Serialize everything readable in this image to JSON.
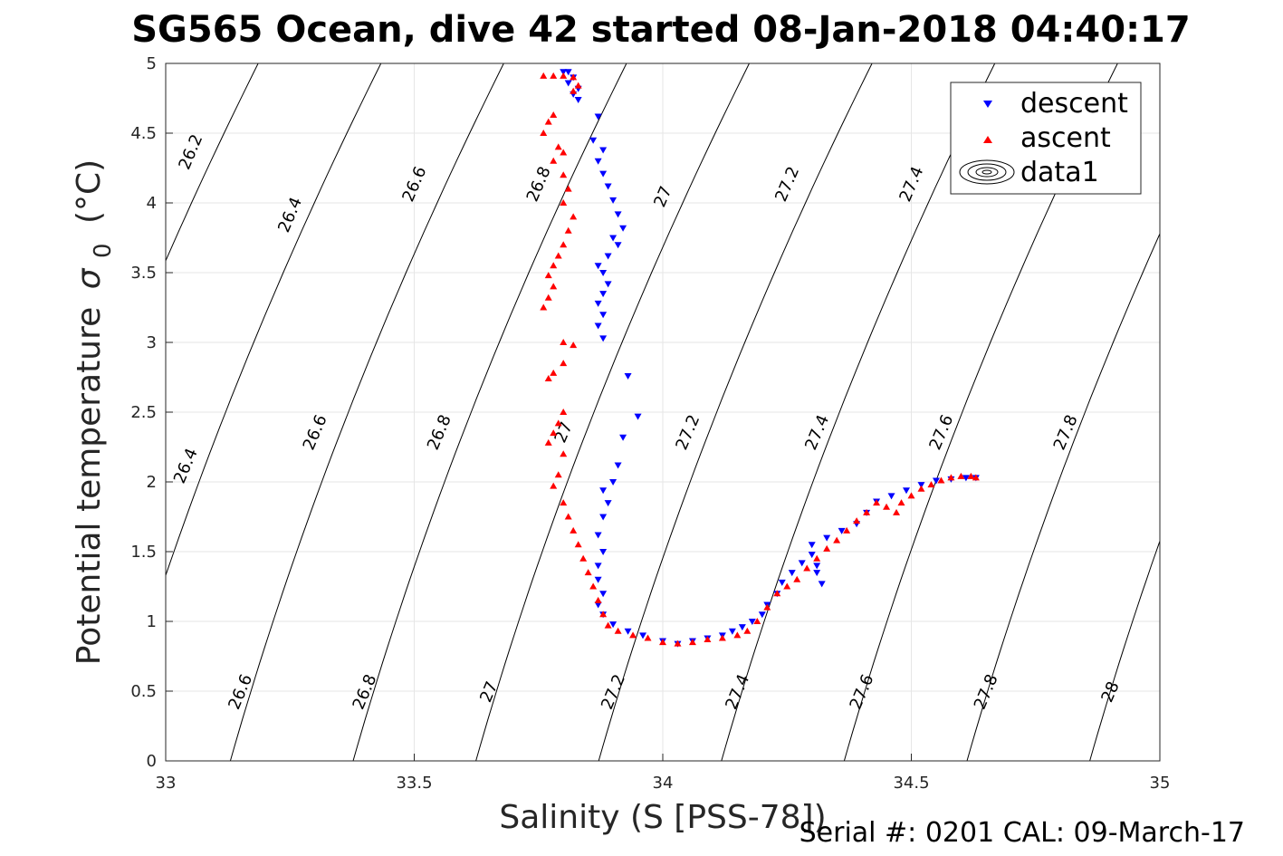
{
  "title": "SG565 Ocean, dive 42 started 08-Jan-2018 04:40:17",
  "footer": "Serial #: 0201  CAL: 09-March-17",
  "chart_data": {
    "type": "scatter",
    "xlabel": "Salinity (S [PSS-78])",
    "ylabel": "Potential temperature",
    "ylabel_symbol": "σ",
    "ylabel_subscript": "0",
    "ylabel_unit": "(°C)",
    "xlim": [
      33,
      35
    ],
    "ylim": [
      0,
      5
    ],
    "xticks": [
      "33",
      "33.5",
      "34",
      "34.5",
      "35"
    ],
    "yticks": [
      "0",
      "0.5",
      "1",
      "1.5",
      "2",
      "2.5",
      "3",
      "3.5",
      "4",
      "4.5",
      "5"
    ],
    "grid": true,
    "legend": {
      "position": "top-right",
      "entries": [
        "descent",
        "ascent",
        "data1"
      ]
    },
    "contours": {
      "levels": [
        26.2,
        26.4,
        26.6,
        26.8,
        27.0,
        27.2,
        27.4,
        27.6,
        27.8,
        28.0
      ],
      "labels": [
        {
          "text": "26.2",
          "s": 33.06,
          "t": 4.35
        },
        {
          "text": "26.4",
          "s": 33.26,
          "t": 3.9
        },
        {
          "text": "26.6",
          "s": 33.51,
          "t": 4.12
        },
        {
          "text": "26.8",
          "s": 33.76,
          "t": 4.12
        },
        {
          "text": "27",
          "s": 34.01,
          "t": 4.03
        },
        {
          "text": "27.2",
          "s": 34.26,
          "t": 4.12
        },
        {
          "text": "27.4",
          "s": 34.51,
          "t": 4.12
        },
        {
          "text": "26.4",
          "s": 33.05,
          "t": 2.1
        },
        {
          "text": "26.6",
          "s": 33.31,
          "t": 2.34
        },
        {
          "text": "26.8",
          "s": 33.56,
          "t": 2.34
        },
        {
          "text": "27",
          "s": 33.81,
          "t": 2.34
        },
        {
          "text": "27.2",
          "s": 34.06,
          "t": 2.34
        },
        {
          "text": "27.4",
          "s": 34.32,
          "t": 2.34
        },
        {
          "text": "27.6",
          "s": 34.57,
          "t": 2.34
        },
        {
          "text": "27.8",
          "s": 34.82,
          "t": 2.34
        },
        {
          "text": "26.6",
          "s": 33.16,
          "t": 0.48
        },
        {
          "text": "26.8",
          "s": 33.41,
          "t": 0.48
        },
        {
          "text": "27",
          "s": 33.66,
          "t": 0.48
        },
        {
          "text": "27.2",
          "s": 33.91,
          "t": 0.48
        },
        {
          "text": "27.4",
          "s": 34.16,
          "t": 0.48
        },
        {
          "text": "27.6",
          "s": 34.41,
          "t": 0.48
        },
        {
          "text": "27.8",
          "s": 34.66,
          "t": 0.48
        },
        {
          "text": "28",
          "s": 34.91,
          "t": 0.48
        }
      ]
    },
    "series": [
      {
        "name": "descent",
        "color": "#0000ff",
        "marker": "triangle-down",
        "points": [
          [
            33.8,
            4.94
          ],
          [
            33.81,
            4.94
          ],
          [
            33.82,
            4.9
          ],
          [
            33.81,
            4.86
          ],
          [
            33.83,
            4.82
          ],
          [
            33.82,
            4.78
          ],
          [
            33.83,
            4.74
          ],
          [
            33.87,
            4.62
          ],
          [
            33.86,
            4.45
          ],
          [
            33.88,
            4.38
          ],
          [
            33.87,
            4.3
          ],
          [
            33.88,
            4.21
          ],
          [
            33.89,
            4.12
          ],
          [
            33.9,
            4.02
          ],
          [
            33.91,
            3.92
          ],
          [
            33.92,
            3.82
          ],
          [
            33.9,
            3.75
          ],
          [
            33.91,
            3.7
          ],
          [
            33.89,
            3.62
          ],
          [
            33.87,
            3.55
          ],
          [
            33.88,
            3.5
          ],
          [
            33.89,
            3.42
          ],
          [
            33.88,
            3.35
          ],
          [
            33.87,
            3.28
          ],
          [
            33.88,
            3.2
          ],
          [
            33.87,
            3.12
          ],
          [
            33.88,
            3.03
          ],
          [
            33.93,
            2.76
          ],
          [
            33.95,
            2.47
          ],
          [
            33.92,
            2.32
          ],
          [
            33.91,
            2.12
          ],
          [
            33.9,
            2.0
          ],
          [
            33.88,
            1.94
          ],
          [
            33.89,
            1.85
          ],
          [
            33.88,
            1.75
          ],
          [
            33.87,
            1.62
          ],
          [
            33.88,
            1.5
          ],
          [
            33.87,
            1.4
          ],
          [
            33.87,
            1.3
          ],
          [
            33.88,
            1.2
          ],
          [
            33.87,
            1.12
          ],
          [
            33.88,
            1.05
          ],
          [
            33.9,
            0.98
          ],
          [
            33.93,
            0.93
          ],
          [
            33.96,
            0.9
          ],
          [
            34.0,
            0.86
          ],
          [
            34.03,
            0.84
          ],
          [
            34.06,
            0.86
          ],
          [
            34.09,
            0.88
          ],
          [
            34.12,
            0.9
          ],
          [
            34.14,
            0.93
          ],
          [
            34.16,
            0.96
          ],
          [
            34.18,
            1.0
          ],
          [
            34.2,
            1.05
          ],
          [
            34.21,
            1.12
          ],
          [
            34.23,
            1.2
          ],
          [
            34.24,
            1.28
          ],
          [
            34.26,
            1.35
          ],
          [
            34.28,
            1.42
          ],
          [
            34.3,
            1.48
          ],
          [
            34.31,
            1.35
          ],
          [
            34.32,
            1.27
          ],
          [
            34.31,
            1.4
          ],
          [
            34.3,
            1.55
          ],
          [
            34.33,
            1.6
          ],
          [
            34.36,
            1.65
          ],
          [
            34.39,
            1.7
          ],
          [
            34.41,
            1.78
          ],
          [
            34.43,
            1.86
          ],
          [
            34.46,
            1.9
          ],
          [
            34.49,
            1.94
          ],
          [
            34.52,
            1.98
          ],
          [
            34.55,
            2.01
          ],
          [
            34.58,
            2.02
          ],
          [
            34.61,
            2.03
          ],
          [
            34.63,
            2.03
          ]
        ]
      },
      {
        "name": "ascent",
        "color": "#ff0000",
        "marker": "triangle-up",
        "points": [
          [
            33.76,
            4.91
          ],
          [
            33.78,
            4.91
          ],
          [
            33.8,
            4.91
          ],
          [
            33.82,
            4.9
          ],
          [
            33.83,
            4.84
          ],
          [
            33.82,
            4.8
          ],
          [
            33.78,
            4.63
          ],
          [
            33.77,
            4.58
          ],
          [
            33.76,
            4.5
          ],
          [
            33.79,
            4.4
          ],
          [
            33.8,
            4.36
          ],
          [
            33.78,
            4.3
          ],
          [
            33.8,
            4.2
          ],
          [
            33.81,
            4.1
          ],
          [
            33.8,
            4.0
          ],
          [
            33.82,
            3.9
          ],
          [
            33.81,
            3.8
          ],
          [
            33.8,
            3.7
          ],
          [
            33.79,
            3.62
          ],
          [
            33.78,
            3.55
          ],
          [
            33.77,
            3.48
          ],
          [
            33.78,
            3.4
          ],
          [
            33.77,
            3.32
          ],
          [
            33.76,
            3.25
          ],
          [
            33.8,
            3.0
          ],
          [
            33.82,
            2.98
          ],
          [
            33.8,
            2.85
          ],
          [
            33.78,
            2.78
          ],
          [
            33.77,
            2.74
          ],
          [
            33.8,
            2.5
          ],
          [
            33.79,
            2.42
          ],
          [
            33.78,
            2.35
          ],
          [
            33.77,
            2.28
          ],
          [
            33.8,
            2.2
          ],
          [
            33.79,
            2.05
          ],
          [
            33.78,
            1.97
          ],
          [
            33.8,
            1.85
          ],
          [
            33.81,
            1.75
          ],
          [
            33.82,
            1.65
          ],
          [
            33.83,
            1.55
          ],
          [
            33.84,
            1.45
          ],
          [
            33.85,
            1.35
          ],
          [
            33.86,
            1.25
          ],
          [
            33.87,
            1.15
          ],
          [
            33.88,
            1.05
          ],
          [
            33.89,
            0.97
          ],
          [
            33.91,
            0.93
          ],
          [
            33.94,
            0.9
          ],
          [
            33.97,
            0.88
          ],
          [
            34.0,
            0.85
          ],
          [
            34.03,
            0.84
          ],
          [
            34.06,
            0.85
          ],
          [
            34.09,
            0.87
          ],
          [
            34.12,
            0.88
          ],
          [
            34.15,
            0.9
          ],
          [
            34.17,
            0.93
          ],
          [
            34.19,
            1.0
          ],
          [
            34.21,
            1.1
          ],
          [
            34.23,
            1.2
          ],
          [
            34.25,
            1.25
          ],
          [
            34.27,
            1.3
          ],
          [
            34.29,
            1.38
          ],
          [
            34.31,
            1.45
          ],
          [
            34.33,
            1.52
          ],
          [
            34.35,
            1.58
          ],
          [
            34.37,
            1.65
          ],
          [
            34.39,
            1.72
          ],
          [
            34.41,
            1.78
          ],
          [
            34.43,
            1.85
          ],
          [
            34.45,
            1.82
          ],
          [
            34.47,
            1.78
          ],
          [
            34.48,
            1.85
          ],
          [
            34.5,
            1.9
          ],
          [
            34.52,
            1.95
          ],
          [
            34.54,
            1.98
          ],
          [
            34.56,
            2.01
          ],
          [
            34.58,
            2.03
          ],
          [
            34.6,
            2.04
          ],
          [
            34.62,
            2.04
          ],
          [
            34.63,
            2.03
          ]
        ]
      }
    ]
  }
}
